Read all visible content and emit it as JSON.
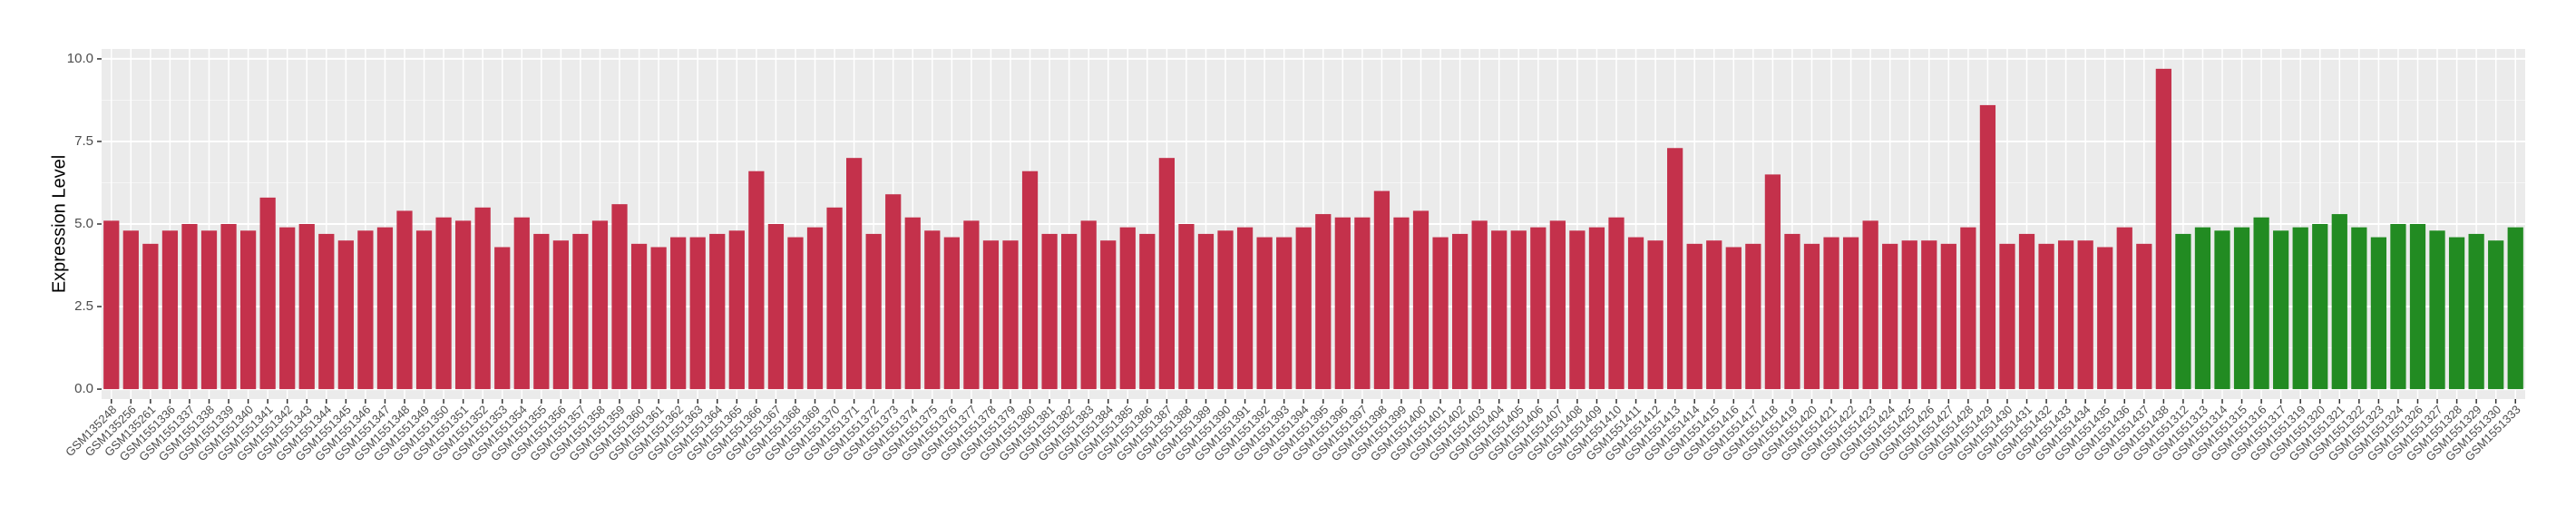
{
  "chart_data": {
    "type": "bar",
    "y_label": "Expression Level",
    "categories": [
      "GSM135248",
      "GSM135256",
      "GSM135261",
      "GSM1551336",
      "GSM1551337",
      "GSM1551338",
      "GSM1551339",
      "GSM1551340",
      "GSM1551341",
      "GSM1551342",
      "GSM1551343",
      "GSM1551344",
      "GSM1551345",
      "GSM1551346",
      "GSM1551347",
      "GSM1551348",
      "GSM1551349",
      "GSM1551350",
      "GSM1551351",
      "GSM1551352",
      "GSM1551353",
      "GSM1551354",
      "GSM1551355",
      "GSM1551356",
      "GSM1551357",
      "GSM1551358",
      "GSM1551359",
      "GSM1551360",
      "GSM1551361",
      "GSM1551362",
      "GSM1551363",
      "GSM1551364",
      "GSM1551365",
      "GSM1551366",
      "GSM1551367",
      "GSM1551368",
      "GSM1551369",
      "GSM1551370",
      "GSM1551371",
      "GSM1551372",
      "GSM1551373",
      "GSM1551374",
      "GSM1551375",
      "GSM1551376",
      "GSM1551377",
      "GSM1551378",
      "GSM1551379",
      "GSM1551380",
      "GSM1551381",
      "GSM1551382",
      "GSM1551383",
      "GSM1551384",
      "GSM1551385",
      "GSM1551386",
      "GSM1551387",
      "GSM1551388",
      "GSM1551389",
      "GSM1551390",
      "GSM1551391",
      "GSM1551392",
      "GSM1551393",
      "GSM1551394",
      "GSM1551395",
      "GSM1551396",
      "GSM1551397",
      "GSM1551398",
      "GSM1551399",
      "GSM1551400",
      "GSM1551401",
      "GSM1551402",
      "GSM1551403",
      "GSM1551404",
      "GSM1551405",
      "GSM1551406",
      "GSM1551407",
      "GSM1551408",
      "GSM1551409",
      "GSM1551410",
      "GSM1551411",
      "GSM1551412",
      "GSM1551413",
      "GSM1551414",
      "GSM1551415",
      "GSM1551416",
      "GSM1551417",
      "GSM1551418",
      "GSM1551419",
      "GSM1551420",
      "GSM1551421",
      "GSM1551422",
      "GSM1551423",
      "GSM1551424",
      "GSM1551425",
      "GSM1551426",
      "GSM1551427",
      "GSM1551428",
      "GSM1551429",
      "GSM1551430",
      "GSM1551431",
      "GSM1551432",
      "GSM1551433",
      "GSM1551434",
      "GSM1551435",
      "GSM1551436",
      "GSM1551437",
      "GSM1551438",
      "GSM1551312",
      "GSM1551313",
      "GSM1551314",
      "GSM1551315",
      "GSM1551316",
      "GSM1551317",
      "GSM1551319",
      "GSM1551320",
      "GSM1551321",
      "GSM1551322",
      "GSM1551323",
      "GSM1551324",
      "GSM1551326",
      "GSM1551327",
      "GSM1551328",
      "GSM1551329",
      "GSM1551330",
      "GSM1551333"
    ],
    "values": [
      5.1,
      4.8,
      4.4,
      4.8,
      5.0,
      4.8,
      5.0,
      4.8,
      5.8,
      4.9,
      5.0,
      4.7,
      4.5,
      4.8,
      4.9,
      5.4,
      4.8,
      5.2,
      5.1,
      5.5,
      4.3,
      5.2,
      4.7,
      4.5,
      4.7,
      5.1,
      5.6,
      4.4,
      4.3,
      4.6,
      4.6,
      4.7,
      4.8,
      6.6,
      5.0,
      4.6,
      4.9,
      5.5,
      7.0,
      4.7,
      5.9,
      5.2,
      4.8,
      4.6,
      5.1,
      4.5,
      4.5,
      6.6,
      4.7,
      4.7,
      5.1,
      4.5,
      4.9,
      4.7,
      7.0,
      5.0,
      4.7,
      4.8,
      4.9,
      4.6,
      4.6,
      4.9,
      5.3,
      5.2,
      5.2,
      6.0,
      5.2,
      5.4,
      4.6,
      4.7,
      5.1,
      4.8,
      4.8,
      4.9,
      5.1,
      4.8,
      4.9,
      5.2,
      4.6,
      4.5,
      7.3,
      4.4,
      4.5,
      4.3,
      4.4,
      6.5,
      4.7,
      4.4,
      4.6,
      4.6,
      5.1,
      4.4,
      4.5,
      4.5,
      4.4,
      4.9,
      8.6,
      4.4,
      4.7,
      4.4,
      4.5,
      4.5,
      4.3,
      4.9,
      4.4,
      9.7,
      4.7,
      4.9,
      4.8,
      4.9,
      5.2,
      4.8,
      4.9,
      5.0,
      5.3,
      4.9,
      4.6,
      5.0,
      5.0,
      4.8,
      4.6,
      4.7,
      4.5,
      4.9
    ],
    "colors": [
      "#c4314b",
      "#c4314b",
      "#c4314b",
      "#c4314b",
      "#c4314b",
      "#c4314b",
      "#c4314b",
      "#c4314b",
      "#c4314b",
      "#c4314b",
      "#c4314b",
      "#c4314b",
      "#c4314b",
      "#c4314b",
      "#c4314b",
      "#c4314b",
      "#c4314b",
      "#c4314b",
      "#c4314b",
      "#c4314b",
      "#c4314b",
      "#c4314b",
      "#c4314b",
      "#c4314b",
      "#c4314b",
      "#c4314b",
      "#c4314b",
      "#c4314b",
      "#c4314b",
      "#c4314b",
      "#c4314b",
      "#c4314b",
      "#c4314b",
      "#c4314b",
      "#c4314b",
      "#c4314b",
      "#c4314b",
      "#c4314b",
      "#c4314b",
      "#c4314b",
      "#c4314b",
      "#c4314b",
      "#c4314b",
      "#c4314b",
      "#c4314b",
      "#c4314b",
      "#c4314b",
      "#c4314b",
      "#c4314b",
      "#c4314b",
      "#c4314b",
      "#c4314b",
      "#c4314b",
      "#c4314b",
      "#c4314b",
      "#c4314b",
      "#c4314b",
      "#c4314b",
      "#c4314b",
      "#c4314b",
      "#c4314b",
      "#c4314b",
      "#c4314b",
      "#c4314b",
      "#c4314b",
      "#c4314b",
      "#c4314b",
      "#c4314b",
      "#c4314b",
      "#c4314b",
      "#c4314b",
      "#c4314b",
      "#c4314b",
      "#c4314b",
      "#c4314b",
      "#c4314b",
      "#c4314b",
      "#c4314b",
      "#c4314b",
      "#c4314b",
      "#c4314b",
      "#c4314b",
      "#c4314b",
      "#c4314b",
      "#c4314b",
      "#c4314b",
      "#c4314b",
      "#c4314b",
      "#c4314b",
      "#c4314b",
      "#c4314b",
      "#c4314b",
      "#c4314b",
      "#c4314b",
      "#c4314b",
      "#c4314b",
      "#c4314b",
      "#c4314b",
      "#c4314b",
      "#c4314b",
      "#c4314b",
      "#c4314b",
      "#c4314b",
      "#c4314b",
      "#c4314b",
      "#c4314b",
      "#228b22",
      "#228b22",
      "#228b22",
      "#228b22",
      "#228b22",
      "#228b22",
      "#228b22",
      "#228b22",
      "#228b22",
      "#228b22",
      "#228b22",
      "#228b22",
      "#228b22",
      "#228b22",
      "#228b22",
      "#228b22",
      "#228b22",
      "#228b22"
    ],
    "ylim": [
      -0.3,
      10.3
    ],
    "yticks": [
      {
        "value": 0,
        "label": "0.0"
      },
      2.5,
      {
        "value": 5,
        "label": "5.0"
      },
      7.5,
      {
        "value": 10,
        "label": "10.0"
      }
    ],
    "grid": true
  }
}
